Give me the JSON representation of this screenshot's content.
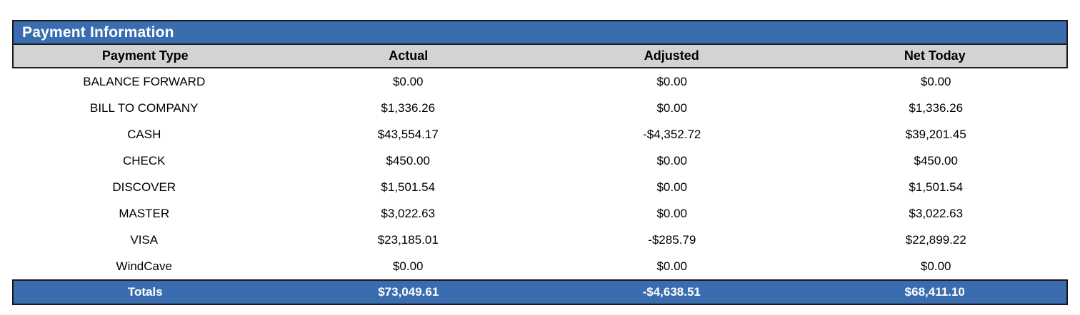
{
  "panel": {
    "title": "Payment Information",
    "columns": [
      "Payment Type",
      "Actual",
      "Adjusted",
      "Net Today"
    ],
    "rows": [
      {
        "type": "BALANCE FORWARD",
        "actual": "$0.00",
        "adjusted": "$0.00",
        "net": "$0.00"
      },
      {
        "type": "BILL TO COMPANY",
        "actual": "$1,336.26",
        "adjusted": "$0.00",
        "net": "$1,336.26"
      },
      {
        "type": "CASH",
        "actual": "$43,554.17",
        "adjusted": "-$4,352.72",
        "net": "$39,201.45"
      },
      {
        "type": "CHECK",
        "actual": "$450.00",
        "adjusted": "$0.00",
        "net": "$450.00"
      },
      {
        "type": "DISCOVER",
        "actual": "$1,501.54",
        "adjusted": "$0.00",
        "net": "$1,501.54"
      },
      {
        "type": "MASTER",
        "actual": "$3,022.63",
        "adjusted": "$0.00",
        "net": "$3,022.63"
      },
      {
        "type": "VISA",
        "actual": "$23,185.01",
        "adjusted": "-$285.79",
        "net": "$22,899.22"
      },
      {
        "type": "WindCave",
        "actual": "$0.00",
        "adjusted": "$0.00",
        "net": "$0.00"
      }
    ],
    "totals": {
      "label": "Totals",
      "actual": "$73,049.61",
      "adjusted": "-$4,638.51",
      "net": "$68,411.10"
    }
  },
  "colors": {
    "accent_blue": "#3a6db0",
    "header_gray": "#d1d3d4",
    "border_black": "#1b1b1b",
    "title_text": "#ffffff"
  }
}
